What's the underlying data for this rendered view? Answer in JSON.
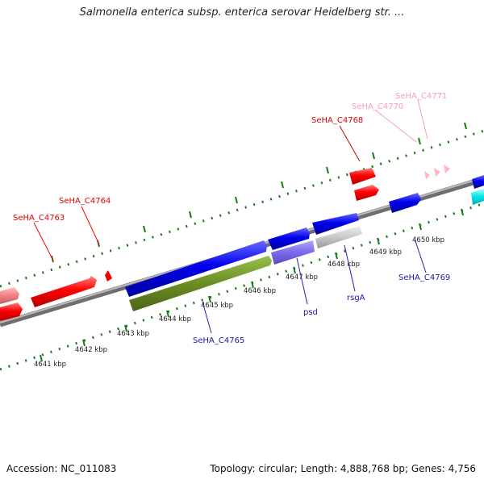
{
  "title": "Salmonella enterica subsp. enterica serovar Heidelberg str. ...",
  "footer": {
    "accession": "Accession: NC_011083",
    "summary": "Topology: circular; Length: 4,888,768 bp; Genes: 4,756"
  },
  "colors": {
    "backbone": "#888888",
    "tick": "#1a7a1a",
    "red_gene": "#ff0000",
    "pink_gene": "#f08080",
    "blue_gene": "#0000ee",
    "olive_gene": "#6b8e23",
    "purple_gene": "#7b68ee",
    "gray_gene": "#c8c8c8",
    "cyan_gene": "#00e5ee",
    "light_pink_gene": "#ffb6c1"
  },
  "scale_labels": [
    "4641 kbp",
    "4642 kbp",
    "4643 kbp",
    "4644 kbp",
    "4645 kbp",
    "4646 kbp",
    "4647 kbp",
    "4648 kbp",
    "4649 kbp",
    "4650 kbp"
  ],
  "gene_labels": {
    "c4763": "SeHA_C4763",
    "c4764": "SeHA_C4764",
    "c4768": "SeHA_C4768",
    "c4770": "SeHA_C4770",
    "c4771": "SeHA_C4771",
    "c4765": "SeHA_C4765",
    "psd": "psd",
    "rsga": "rsgA",
    "c4769": "SeHA_C4769"
  }
}
